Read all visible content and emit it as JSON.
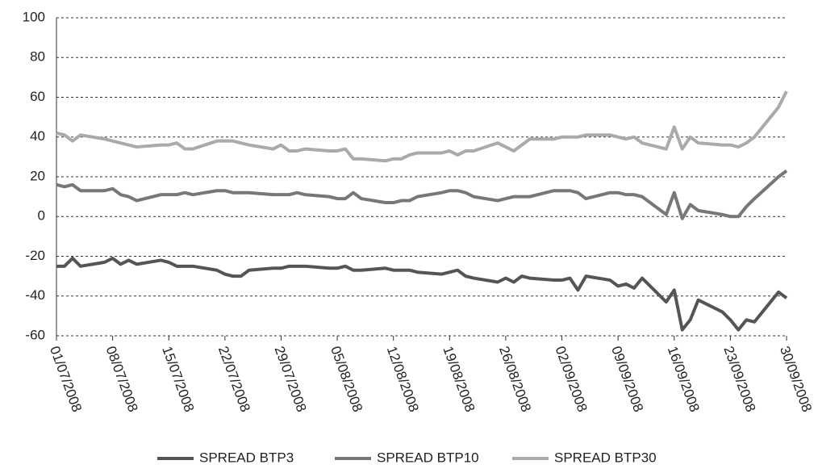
{
  "chart_data": {
    "type": "line",
    "x": [
      "01/07/2008",
      "02/07/2008",
      "03/07/2008",
      "04/07/2008",
      "07/07/2008",
      "08/07/2008",
      "09/07/2008",
      "10/07/2008",
      "11/07/2008",
      "14/07/2008",
      "15/07/2008",
      "16/07/2008",
      "17/07/2008",
      "18/07/2008",
      "21/07/2008",
      "22/07/2008",
      "23/07/2008",
      "24/07/2008",
      "25/07/2008",
      "28/07/2008",
      "29/07/2008",
      "30/07/2008",
      "31/07/2008",
      "01/08/2008",
      "04/08/2008",
      "05/08/2008",
      "06/08/2008",
      "07/08/2008",
      "08/08/2008",
      "11/08/2008",
      "12/08/2008",
      "13/08/2008",
      "14/08/2008",
      "15/08/2008",
      "18/08/2008",
      "19/08/2008",
      "20/08/2008",
      "21/08/2008",
      "22/08/2008",
      "25/08/2008",
      "26/08/2008",
      "27/08/2008",
      "28/08/2008",
      "29/08/2008",
      "01/09/2008",
      "02/09/2008",
      "03/09/2008",
      "04/09/2008",
      "05/09/2008",
      "08/09/2008",
      "09/09/2008",
      "10/09/2008",
      "11/09/2008",
      "12/09/2008",
      "15/09/2008",
      "16/09/2008",
      "17/09/2008",
      "18/09/2008",
      "19/09/2008",
      "22/09/2008",
      "23/09/2008",
      "24/09/2008",
      "25/09/2008",
      "26/09/2008",
      "29/09/2008",
      "30/09/2008"
    ],
    "series": [
      {
        "name": "SPREAD BTP3",
        "color": "#555555",
        "values": [
          -25,
          -25,
          -21,
          -25,
          -23,
          -21,
          -24,
          -22,
          -24,
          -22,
          -23,
          -25,
          -25,
          -25,
          -27,
          -29,
          -30,
          -30,
          -27,
          -26,
          -26,
          -25,
          -25,
          -25,
          -26,
          -26,
          -25,
          -27,
          -27,
          -26,
          -27,
          -27,
          -27,
          -28,
          -29,
          -28,
          -27,
          -30,
          -31,
          -33,
          -31,
          -33,
          -30,
          -31,
          -32,
          -32,
          -31,
          -37,
          -30,
          -32,
          -35,
          -34,
          -36,
          -31,
          -43,
          -37,
          -57,
          -52,
          -42,
          -48,
          -52,
          -57,
          -52,
          -53,
          -38,
          -41
        ]
      },
      {
        "name": "SPREAD BTP10",
        "color": "#777777",
        "values": [
          16,
          15,
          16,
          13,
          13,
          14,
          11,
          10,
          8,
          11,
          11,
          11,
          12,
          11,
          13,
          13,
          12,
          12,
          12,
          11,
          11,
          11,
          12,
          11,
          10,
          9,
          9,
          12,
          9,
          7,
          7,
          8,
          8,
          10,
          12,
          13,
          13,
          12,
          10,
          8,
          9,
          10,
          10,
          10,
          13,
          13,
          13,
          12,
          9,
          12,
          12,
          11,
          11,
          10,
          1,
          12,
          -1,
          6,
          3,
          1,
          0,
          0,
          5,
          9,
          20,
          23
        ]
      },
      {
        "name": "SPREAD BTP30",
        "color": "#aaaaaa",
        "values": [
          42,
          41,
          38,
          41,
          39,
          38,
          37,
          36,
          35,
          36,
          36,
          37,
          34,
          34,
          38,
          38,
          38,
          37,
          36,
          34,
          36,
          33,
          33,
          34,
          33,
          33,
          34,
          29,
          29,
          28,
          29,
          29,
          31,
          32,
          32,
          33,
          31,
          33,
          33,
          37,
          35,
          33,
          36,
          39,
          39,
          40,
          40,
          40,
          41,
          41,
          40,
          39,
          40,
          37,
          34,
          45,
          34,
          40,
          37,
          36,
          36,
          35,
          37,
          40,
          55,
          63
        ]
      }
    ],
    "ylim": [
      -60,
      100
    ],
    "yticks": [
      -60,
      -40,
      -20,
      0,
      20,
      40,
      60,
      80,
      100
    ],
    "xticks": [
      "01/07/2008",
      "08/07/2008",
      "15/07/2008",
      "22/07/2008",
      "29/07/2008",
      "05/08/2008",
      "12/08/2008",
      "19/08/2008",
      "26/08/2008",
      "02/09/2008",
      "09/09/2008",
      "16/09/2008",
      "23/09/2008",
      "30/09/2008"
    ],
    "grid": true,
    "legend": "bottom"
  }
}
